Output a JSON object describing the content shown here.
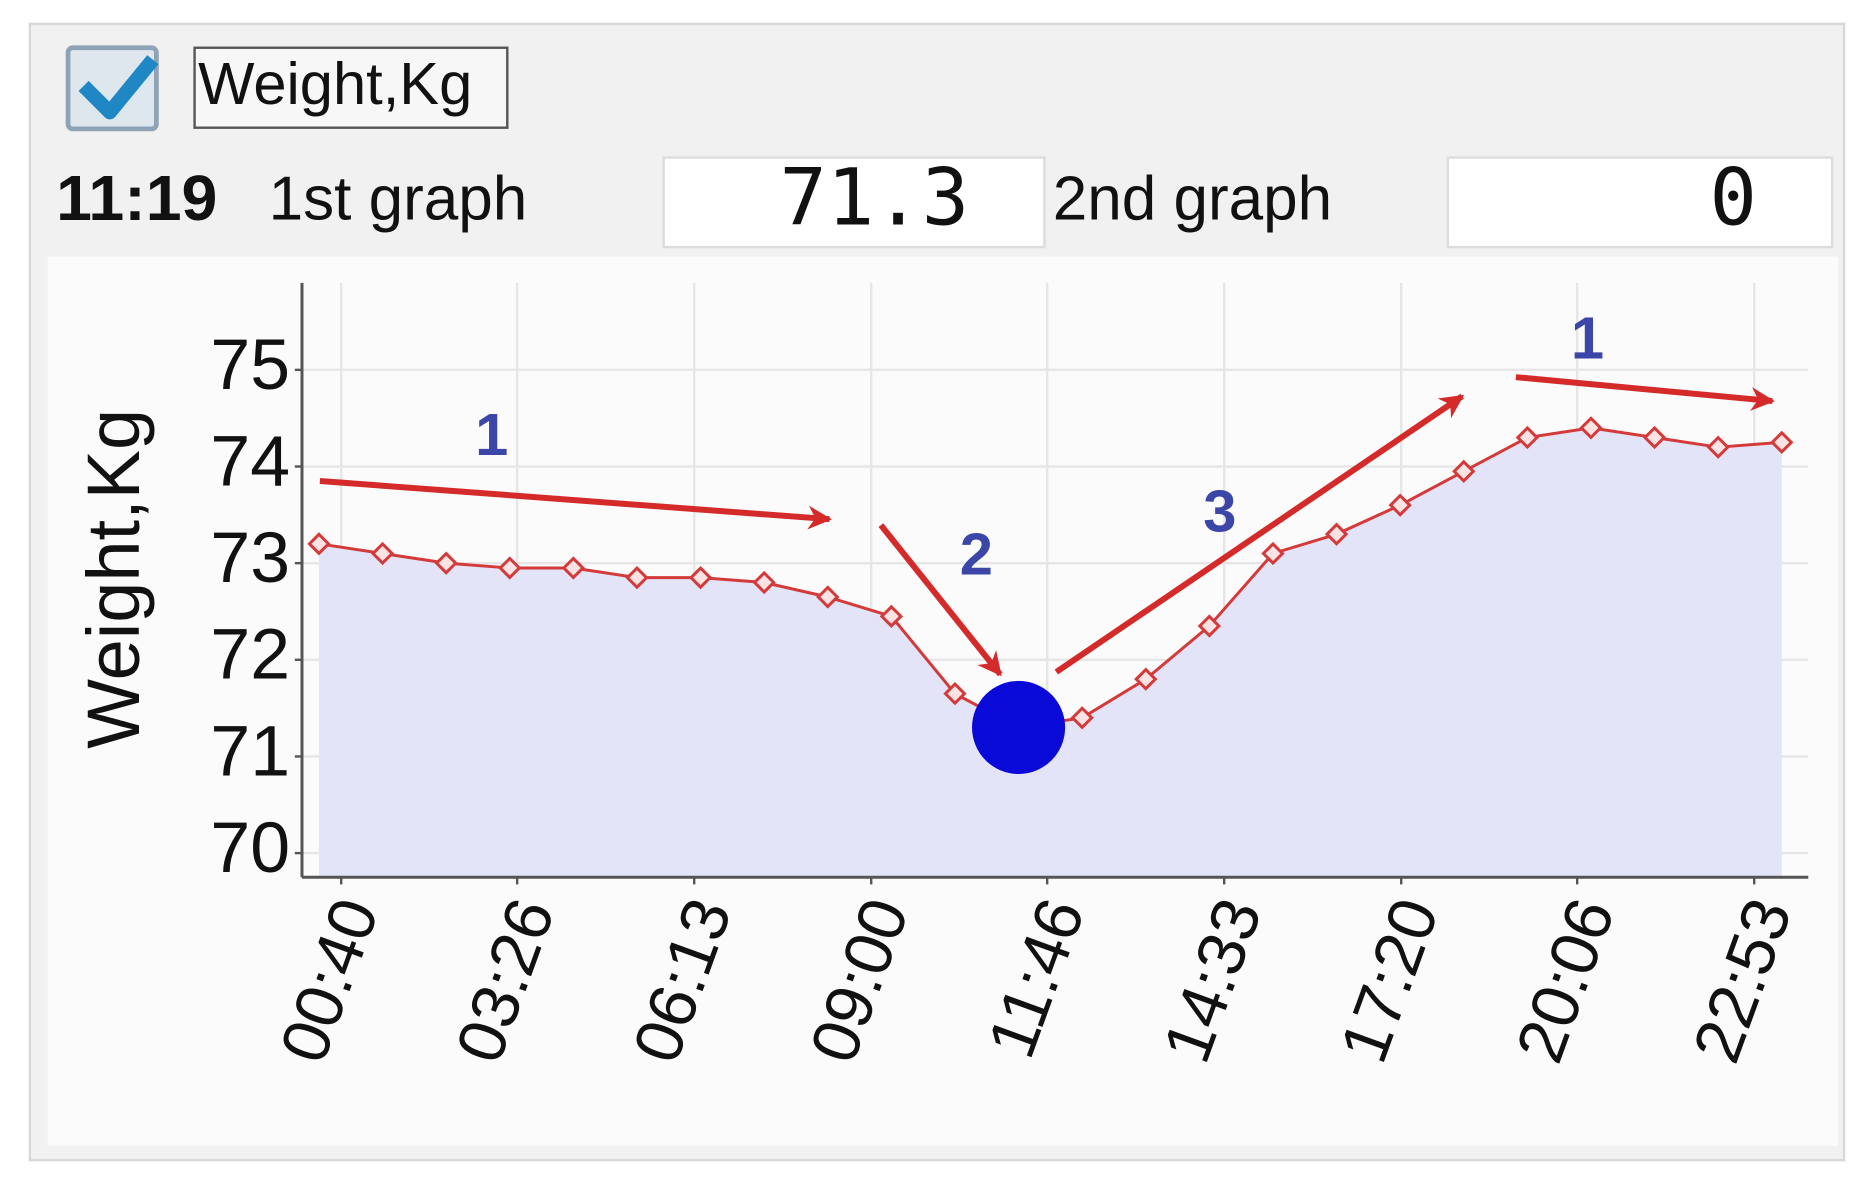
{
  "checkbox": {
    "label": "Weight,Kg",
    "checked": true
  },
  "header": {
    "time": "11:19",
    "first_label": "1st graph",
    "first_value": 71.3,
    "second_label": "2nd graph",
    "second_value": 0
  },
  "chart_data": {
    "type": "line",
    "y_label": "Weight,Kg",
    "x": [
      19,
      79,
      139,
      199,
      259,
      319,
      379,
      439,
      499,
      559,
      619,
      679,
      739,
      799,
      859,
      919,
      979,
      1039,
      1099,
      1159,
      1219,
      1279,
      1339,
      1399
    ],
    "values": [
      73.2,
      73.1,
      73.0,
      72.95,
      72.95,
      72.85,
      72.85,
      72.8,
      72.65,
      72.45,
      71.65,
      71.3,
      71.4,
      71.8,
      72.35,
      73.1,
      73.3,
      73.6,
      73.95,
      74.3,
      74.4,
      74.3,
      74.2,
      74.25
    ],
    "color": "#d43a3a",
    "fill_color": "#e4e4f8",
    "highlight_color": "#0a0ad8",
    "xlim": [
      3,
      1424
    ],
    "ylim": [
      69.75,
      75.9
    ],
    "xticks": [
      {
        "value": 40,
        "label": "00:40"
      },
      {
        "value": 206,
        "label": "03:26"
      },
      {
        "value": 373,
        "label": "06:13"
      },
      {
        "value": 540,
        "label": "09:00"
      },
      {
        "value": 706,
        "label": "11:46"
      },
      {
        "value": 873,
        "label": "14:33"
      },
      {
        "value": 1040,
        "label": "17:20"
      },
      {
        "value": 1206,
        "label": "20:06"
      },
      {
        "value": 1373,
        "label": "22:53"
      }
    ],
    "yticks": [
      70,
      71,
      72,
      73,
      74,
      75
    ],
    "grid": true,
    "annotations": [
      "1",
      "2",
      "3",
      "1"
    ]
  }
}
